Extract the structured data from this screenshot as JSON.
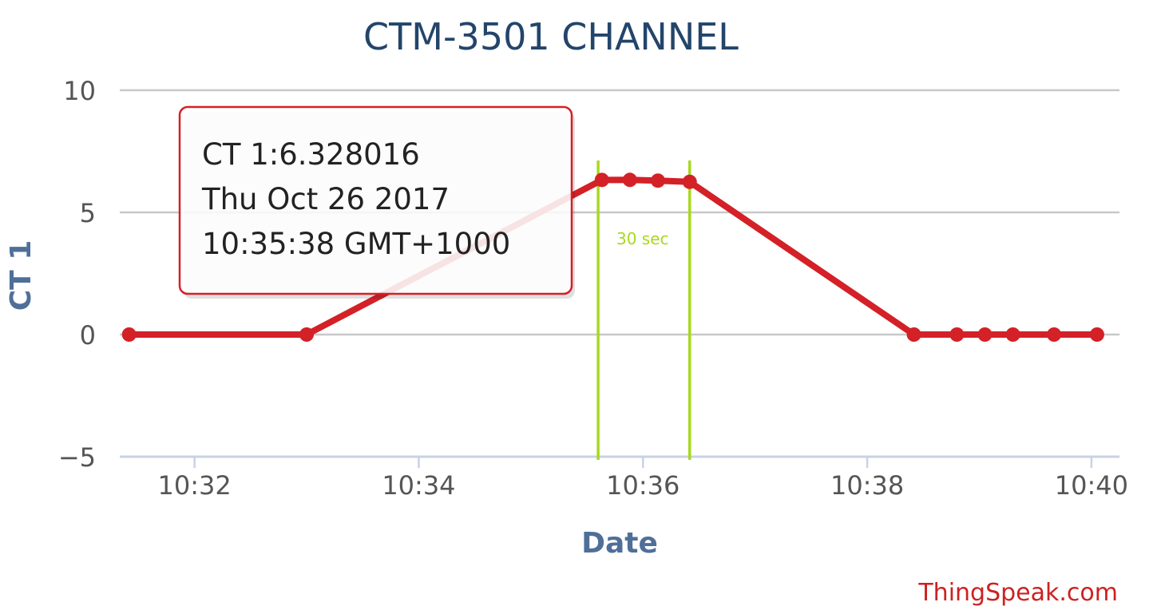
{
  "chart_data": {
    "type": "line",
    "title": "CTM-3501 CHANNEL",
    "xlabel": "Date",
    "ylabel": "CT 1",
    "x_ticks": [
      "10:32",
      "10:34",
      "10:36",
      "10:38",
      "10:40"
    ],
    "y_ticks": [
      "10",
      "5",
      "0",
      "−5"
    ],
    "ylim": [
      -5,
      10
    ],
    "xlim": [
      "10:31:20",
      "10:40:15"
    ],
    "grid": true,
    "series": [
      {
        "name": "CT 1",
        "color": "#d42027",
        "points": [
          {
            "x": "10:31:25",
            "y": 0
          },
          {
            "x": "10:33:00",
            "y": 0
          },
          {
            "x": "10:35:38",
            "y": 6.328016
          },
          {
            "x": "10:35:53",
            "y": 6.33
          },
          {
            "x": "10:36:08",
            "y": 6.3
          },
          {
            "x": "10:36:25",
            "y": 6.25
          },
          {
            "x": "10:38:25",
            "y": 0
          },
          {
            "x": "10:38:48",
            "y": 0
          },
          {
            "x": "10:39:03",
            "y": 0
          },
          {
            "x": "10:39:18",
            "y": 0
          },
          {
            "x": "10:39:40",
            "y": 0
          },
          {
            "x": "10:40:03",
            "y": 0
          }
        ]
      }
    ],
    "markers": [
      {
        "x": "10:35:36",
        "color": "#a8d81f"
      },
      {
        "x": "10:36:25",
        "color": "#a8d81f"
      }
    ],
    "annotation": "30 sec",
    "tooltip": {
      "line1": "CT 1:6.328016",
      "line2": "Thu Oct 26 2017",
      "line3": "10:35:38 GMT+1000"
    },
    "credit": "ThingSpeak.com"
  }
}
